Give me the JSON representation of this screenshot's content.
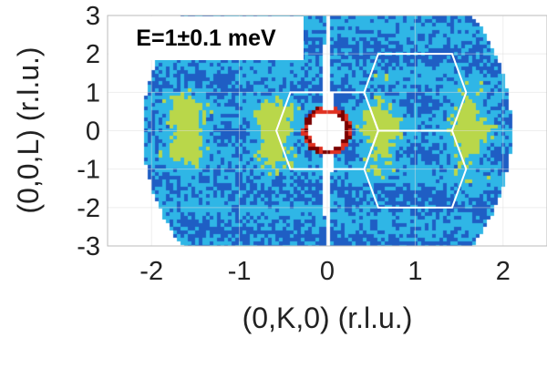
{
  "chart_data": {
    "type": "heatmap",
    "annotation": "E=1±0.1 meV",
    "xlabel": "(0,K,0) (r.l.u.)",
    "ylabel": "(0,0,L) (r.l.u.)",
    "xlim": [
      -2.5,
      2.5
    ],
    "ylim": [
      -3,
      3
    ],
    "xticks": [
      "-2",
      "-1",
      "0",
      "1",
      "2"
    ],
    "yticks": [
      "3",
      "2",
      "1",
      "0",
      "-1",
      "-2",
      "-3"
    ],
    "grid": true,
    "colormap": [
      "#1b2a86",
      "#1f5ec4",
      "#2fb6e6",
      "#b9d74a",
      "#e03020",
      "#7a0000"
    ],
    "intensity_maxima_K": [
      -1.6,
      -0.6,
      0.6,
      1.6
    ],
    "intensity_maxima_L": 0,
    "brillouin_zones": [
      {
        "center": [
          0,
          0
        ]
      },
      {
        "center": [
          1,
          1
        ]
      },
      {
        "center": [
          1,
          -1
        ]
      }
    ],
    "zone_outline_color": "#ffffff"
  }
}
